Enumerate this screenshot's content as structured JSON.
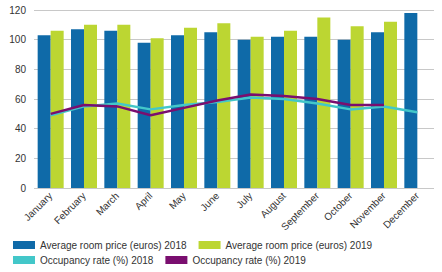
{
  "chart_data": {
    "type": "bar",
    "categories": [
      "January",
      "February",
      "March",
      "April",
      "May",
      "June",
      "July",
      "August",
      "September",
      "October",
      "November",
      "December"
    ],
    "series": [
      {
        "name": "Average room price (euros) 2018",
        "type": "bar",
        "color": "#0f6aa8",
        "values": [
          103,
          107,
          106,
          98,
          103,
          105,
          100,
          102,
          102,
          100,
          105,
          118
        ]
      },
      {
        "name": "Average room price (euros) 2019",
        "type": "bar",
        "color": "#bcd632",
        "values": [
          106,
          110,
          110,
          101,
          108,
          111,
          102,
          106,
          115,
          109,
          112,
          null
        ]
      },
      {
        "name": "Occupancy rate (%) 2018",
        "type": "line",
        "color": "#43c7c9",
        "values": [
          49,
          55,
          57,
          53,
          56,
          58,
          61,
          60,
          57,
          53,
          55,
          51
        ]
      },
      {
        "name": "Occupancy rate (%) 2019",
        "type": "line",
        "color": "#7a0e6f",
        "values": [
          50,
          56,
          55,
          49,
          54,
          59,
          63,
          62,
          60,
          56,
          56,
          null
        ]
      }
    ],
    "ylim": [
      0,
      120
    ],
    "yticks": [
      0,
      20,
      40,
      60,
      80,
      100,
      120
    ],
    "grid": true,
    "legend": "bottom"
  }
}
